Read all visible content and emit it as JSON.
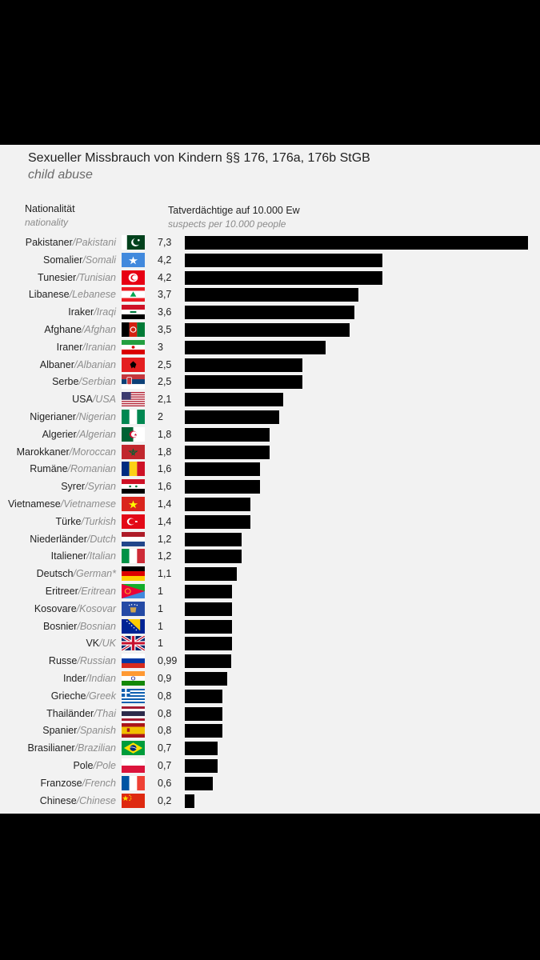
{
  "chart_data": {
    "type": "bar",
    "orientation": "horizontal",
    "title": "Sexueller Missbrauch von Kindern §§ 176, 176a, 176b StGB",
    "subtitle": "child abuse",
    "category_header": "Nationalität",
    "category_header_en": "nationality",
    "value_header": "Tatverdächtige auf 10.000 Ew",
    "value_header_en": "suspects per 10.000 people",
    "bar_color": "#000000",
    "xlim": [
      0,
      7.3
    ],
    "categories": [
      {
        "de": "Pakistaner",
        "en": "Pakistani",
        "value": 7.3,
        "display": "7,3",
        "flag": "pakistan-flag-icon"
      },
      {
        "de": "Somalier",
        "en": "Somali",
        "value": 4.2,
        "display": "4,2",
        "flag": "somalia-flag-icon"
      },
      {
        "de": "Tunesier",
        "en": "Tunisian",
        "value": 4.2,
        "display": "4,2",
        "flag": "tunisia-flag-icon"
      },
      {
        "de": "Libanese",
        "en": "Lebanese",
        "value": 3.7,
        "display": "3,7",
        "flag": "lebanon-flag-icon"
      },
      {
        "de": "Iraker",
        "en": "Iraqi",
        "value": 3.6,
        "display": "3,6",
        "flag": "iraq-flag-icon"
      },
      {
        "de": "Afghane",
        "en": "Afghan",
        "value": 3.5,
        "display": "3,5",
        "flag": "afghanistan-flag-icon"
      },
      {
        "de": "Iraner",
        "en": "Iranian",
        "value": 3,
        "display": "3",
        "flag": "iran-flag-icon"
      },
      {
        "de": "Albaner",
        "en": "Albanian",
        "value": 2.5,
        "display": "2,5",
        "flag": "albania-flag-icon"
      },
      {
        "de": "Serbe",
        "en": "Serbian",
        "value": 2.5,
        "display": "2,5",
        "flag": "serbia-flag-icon"
      },
      {
        "de": "USA",
        "en": "USA",
        "value": 2.1,
        "display": "2,1",
        "flag": "usa-flag-icon"
      },
      {
        "de": "Nigerianer",
        "en": "Nigerian",
        "value": 2,
        "display": "2",
        "flag": "nigeria-flag-icon"
      },
      {
        "de": "Algerier",
        "en": "Algerian",
        "value": 1.8,
        "display": "1,8",
        "flag": "algeria-flag-icon"
      },
      {
        "de": "Marokkaner",
        "en": "Moroccan",
        "value": 1.8,
        "display": "1,8",
        "flag": "morocco-flag-icon"
      },
      {
        "de": "Rumäne",
        "en": "Romanian",
        "value": 1.6,
        "display": "1,6",
        "flag": "romania-flag-icon"
      },
      {
        "de": "Syrer",
        "en": "Syrian",
        "value": 1.6,
        "display": "1,6",
        "flag": "syria-flag-icon"
      },
      {
        "de": "Vietnamese",
        "en": "Vietnamese",
        "value": 1.4,
        "display": "1,4",
        "flag": "vietnam-flag-icon"
      },
      {
        "de": "Türke",
        "en": "Turkish",
        "value": 1.4,
        "display": "1,4",
        "flag": "turkey-flag-icon"
      },
      {
        "de": "Niederländer",
        "en": "Dutch",
        "value": 1.2,
        "display": "1,2",
        "flag": "netherlands-flag-icon"
      },
      {
        "de": "Italiener",
        "en": "Italian",
        "value": 1.2,
        "display": "1,2",
        "flag": "italy-flag-icon"
      },
      {
        "de": "Deutsch",
        "en": "German*",
        "value": 1.1,
        "display": "1,1",
        "flag": "germany-flag-icon"
      },
      {
        "de": "Eritreer",
        "en": "Eritrean",
        "value": 1,
        "display": "1",
        "flag": "eritrea-flag-icon"
      },
      {
        "de": "Kosovare",
        "en": "Kosovar",
        "value": 1,
        "display": "1",
        "flag": "kosovo-flag-icon"
      },
      {
        "de": "Bosnier",
        "en": "Bosnian",
        "value": 1,
        "display": "1",
        "flag": "bosnia-flag-icon"
      },
      {
        "de": "VK",
        "en": "UK",
        "value": 1,
        "display": "1",
        "flag": "uk-flag-icon"
      },
      {
        "de": "Russe",
        "en": "Russian",
        "value": 0.99,
        "display": "0,99",
        "flag": "russia-flag-icon"
      },
      {
        "de": "Inder",
        "en": "Indian",
        "value": 0.9,
        "display": "0,9",
        "flag": "india-flag-icon"
      },
      {
        "de": "Grieche",
        "en": "Greek",
        "value": 0.8,
        "display": "0,8",
        "flag": "greece-flag-icon"
      },
      {
        "de": "Thailänder",
        "en": "Thai",
        "value": 0.8,
        "display": "0,8",
        "flag": "thailand-flag-icon"
      },
      {
        "de": "Spanier",
        "en": "Spanish",
        "value": 0.8,
        "display": "0,8",
        "flag": "spain-flag-icon"
      },
      {
        "de": "Brasilianer",
        "en": "Brazilian",
        "value": 0.7,
        "display": "0,7",
        "flag": "brazil-flag-icon"
      },
      {
        "de": "Pole",
        "en": "Pole",
        "value": 0.7,
        "display": "0,7",
        "flag": "poland-flag-icon"
      },
      {
        "de": "Franzose",
        "en": "French",
        "value": 0.6,
        "display": "0,6",
        "flag": "france-flag-icon"
      },
      {
        "de": "Chinese",
        "en": "Chinese",
        "value": 0.2,
        "display": "0,2",
        "flag": "china-flag-icon"
      }
    ]
  }
}
